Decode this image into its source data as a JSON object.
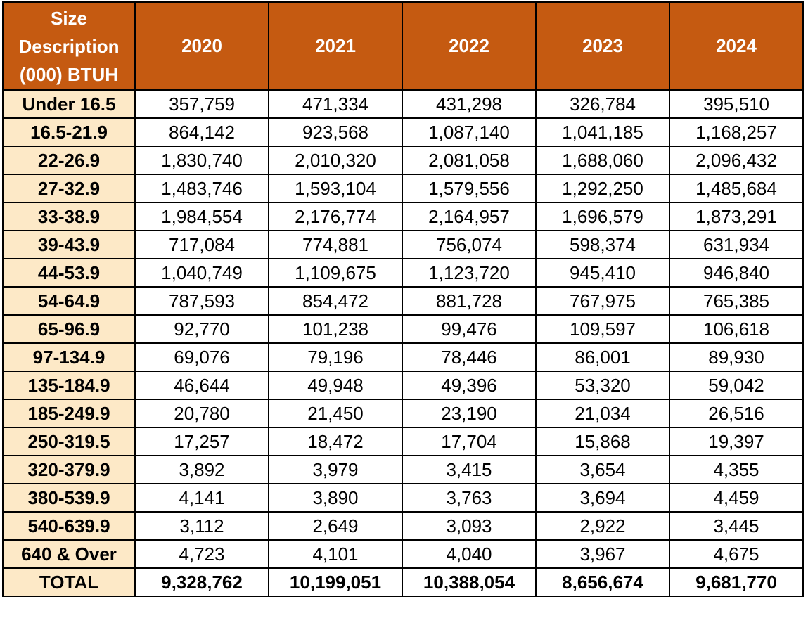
{
  "chart_data": {
    "type": "table",
    "columns": [
      "Size Description (000) BTUH",
      "2020",
      "2021",
      "2022",
      "2023",
      "2024"
    ],
    "header_lines": [
      "Size",
      "Description",
      "(000) BTUH"
    ],
    "years": [
      "2020",
      "2021",
      "2022",
      "2023",
      "2024"
    ],
    "rows": [
      {
        "label": "Under 16.5",
        "values": [
          "357,759",
          "471,334",
          "431,298",
          "326,784",
          "395,510"
        ]
      },
      {
        "label": "16.5-21.9",
        "values": [
          "864,142",
          "923,568",
          "1,087,140",
          "1,041,185",
          "1,168,257"
        ]
      },
      {
        "label": "22-26.9",
        "values": [
          "1,830,740",
          "2,010,320",
          "2,081,058",
          "1,688,060",
          "2,096,432"
        ]
      },
      {
        "label": "27-32.9",
        "values": [
          "1,483,746",
          "1,593,104",
          "1,579,556",
          "1,292,250",
          "1,485,684"
        ]
      },
      {
        "label": "33-38.9",
        "values": [
          "1,984,554",
          "2,176,774",
          "2,164,957",
          "1,696,579",
          "1,873,291"
        ]
      },
      {
        "label": "39-43.9",
        "values": [
          "717,084",
          "774,881",
          "756,074",
          "598,374",
          "631,934"
        ]
      },
      {
        "label": "44-53.9",
        "values": [
          "1,040,749",
          "1,109,675",
          "1,123,720",
          "945,410",
          "946,840"
        ]
      },
      {
        "label": "54-64.9",
        "values": [
          "787,593",
          "854,472",
          "881,728",
          "767,975",
          "765,385"
        ]
      },
      {
        "label": "65-96.9",
        "values": [
          "92,770",
          "101,238",
          "99,476",
          "109,597",
          "106,618"
        ]
      },
      {
        "label": "97-134.9",
        "values": [
          "69,076",
          "79,196",
          "78,446",
          "86,001",
          "89,930"
        ]
      },
      {
        "label": "135-184.9",
        "values": [
          "46,644",
          "49,948",
          "49,396",
          "53,320",
          "59,042"
        ]
      },
      {
        "label": "185-249.9",
        "values": [
          "20,780",
          "21,450",
          "23,190",
          "21,034",
          "26,516"
        ]
      },
      {
        "label": "250-319.5",
        "values": [
          "17,257",
          "18,472",
          "17,704",
          "15,868",
          "19,397"
        ]
      },
      {
        "label": "320-379.9",
        "values": [
          "3,892",
          "3,979",
          "3,415",
          "3,654",
          "4,355"
        ]
      },
      {
        "label": "380-539.9",
        "values": [
          "4,141",
          "3,890",
          "3,763",
          "3,694",
          "4,459"
        ]
      },
      {
        "label": "540-639.9",
        "values": [
          "3,112",
          "2,649",
          "3,093",
          "2,922",
          "3,445"
        ]
      },
      {
        "label": "640 & Over",
        "values": [
          "4,723",
          "4,101",
          "4,040",
          "3,967",
          "4,675"
        ]
      }
    ],
    "total": {
      "label": "TOTAL",
      "values": [
        "9,328,762",
        "10,199,051",
        "10,388,054",
        "8,656,674",
        "9,681,770"
      ]
    },
    "colors": {
      "header_bg": "#c55a11",
      "header_text": "#ffffff",
      "label_bg": "#fde9c7",
      "border": "#000000"
    }
  }
}
